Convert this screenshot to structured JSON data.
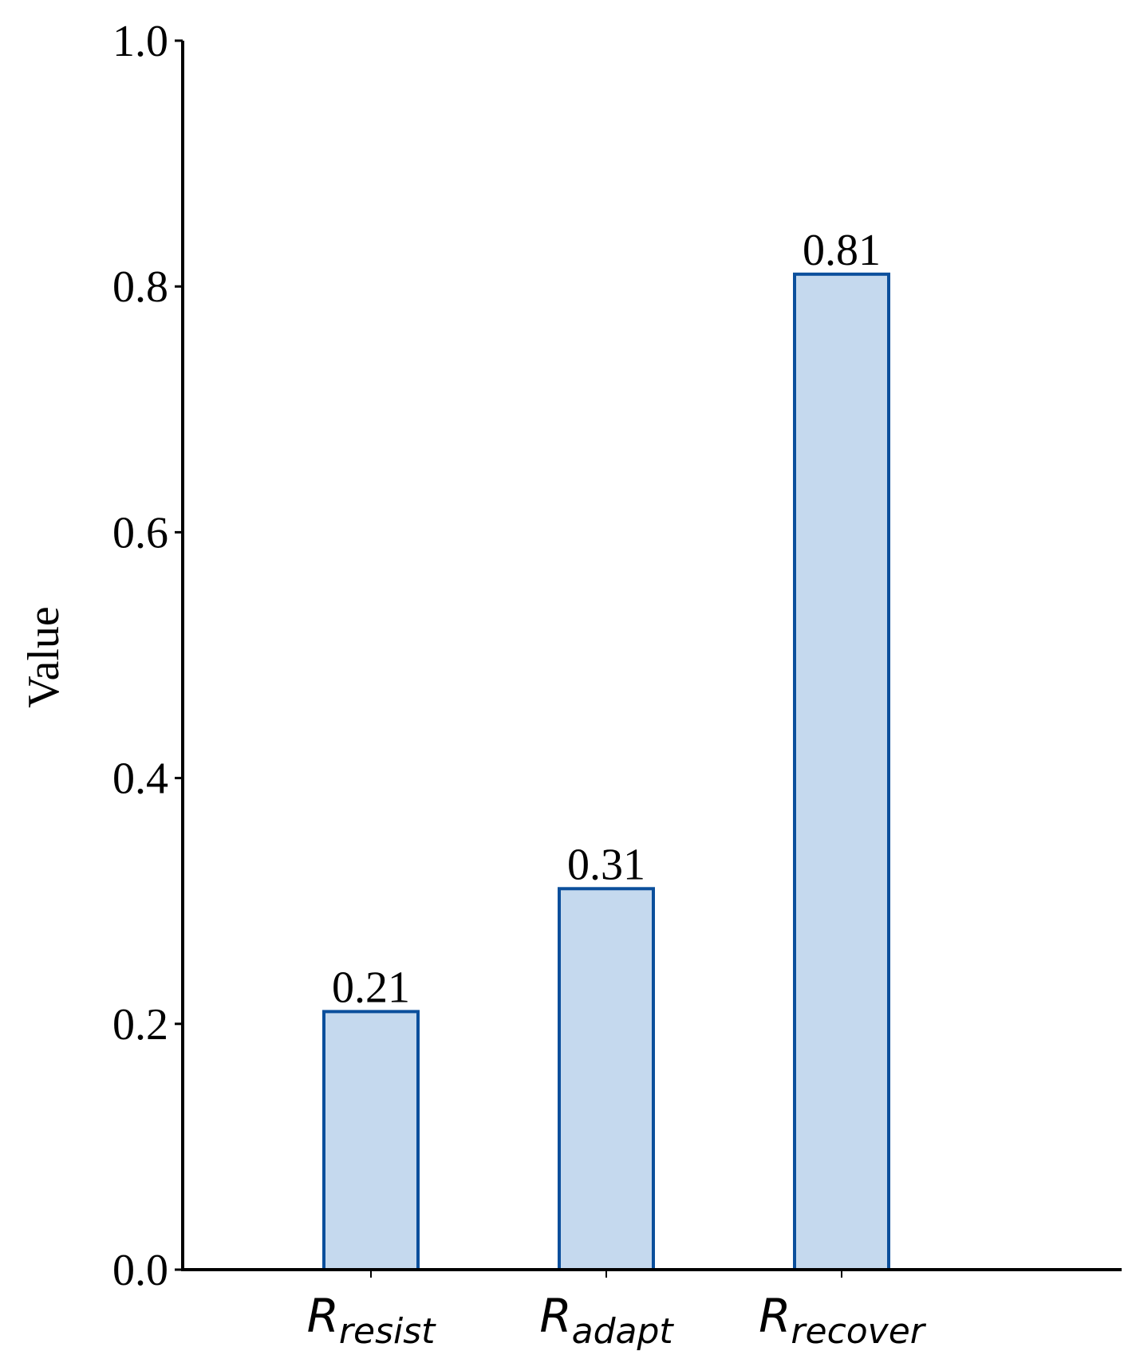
{
  "chart_data": {
    "type": "bar",
    "y_label": "Value",
    "categories": [
      {
        "symbol": "R",
        "subscript": "resist"
      },
      {
        "symbol": "R",
        "subscript": "adapt"
      },
      {
        "symbol": "R",
        "subscript": "recover"
      }
    ],
    "values": [
      0.21,
      0.31,
      0.81
    ],
    "color": "#c5d9ee",
    "edge_color": "#0b4f9c",
    "ylim": [
      0,
      1
    ],
    "yticks": [
      {
        "value": 0,
        "label": "0.0"
      },
      0.2,
      0.4,
      0.6,
      0.8,
      {
        "value": 1,
        "label": "1.0"
      }
    ],
    "grid": false
  }
}
